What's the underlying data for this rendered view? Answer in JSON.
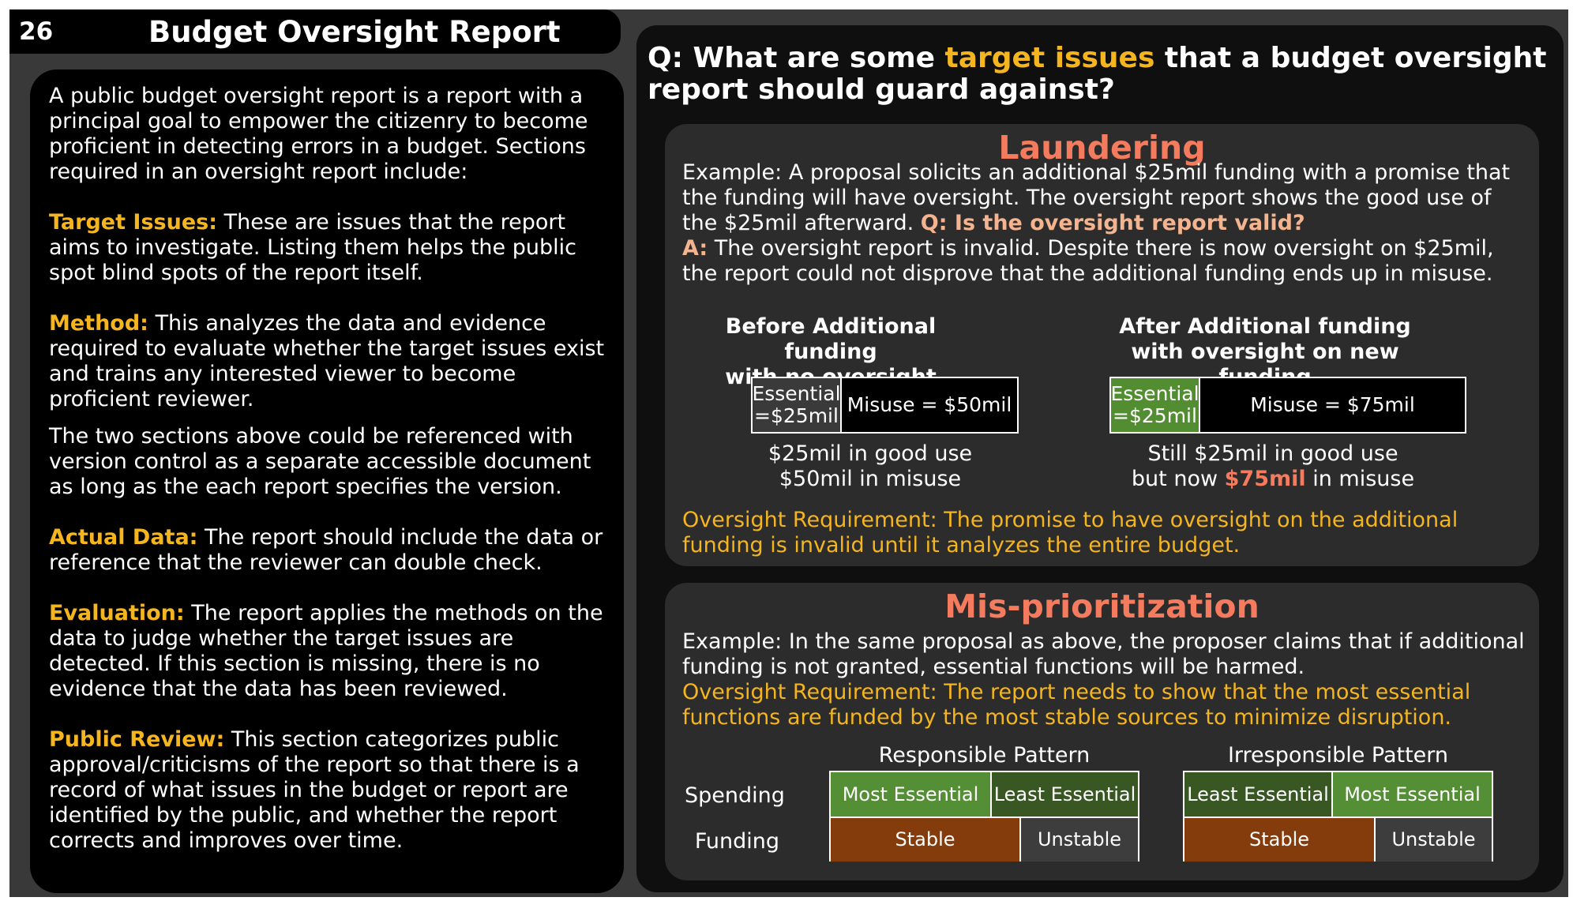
{
  "header": {
    "number": "26",
    "title": "Budget Oversight Report"
  },
  "left": {
    "intro": "A public budget oversight report is a report with a principal goal to empower the citizenry to become proficient in detecting errors in a budget. Sections required in an oversight report include:",
    "sections": [
      {
        "label": "Target Issues:",
        "text": " These are issues that the report aims to investigate. Listing them helps the public spot blind spots of the report itself."
      },
      {
        "label": "Method:",
        "text": " This analyzes the data and evidence required to evaluate whether the target issues exist and trains any interested viewer to become proficient reviewer."
      },
      {
        "label": "",
        "text": "The two sections above could be referenced with version control as a separate accessible document as long as the each report specifies the version."
      },
      {
        "label": "Actual Data:",
        "text": " The report should include the data or reference that the reviewer can double check."
      },
      {
        "label": "Evaluation:",
        "text": " The report applies the methods on the data to judge whether the target issues are detected. If this section is missing, there is no evidence that the data has been reviewed."
      },
      {
        "label": "Public Review:",
        "text": " This section categorizes public approval/criticisms of the report so that there is a record of what issues in the budget or report are identified by the public, and whether the report corrects and improves over time."
      }
    ]
  },
  "question": {
    "prefix": "Q: What are some ",
    "highlight": "target issues",
    "suffix": " that a budget oversight report should guard against?"
  },
  "laundering": {
    "title": "Laundering",
    "example": "Example: A proposal solicits an additional $25mil funding with a promise that the funding will have oversight. The oversight report shows the good use of the $25mil afterward. ",
    "q": "Q: Is the oversight report valid?",
    "a_label": "A:",
    "a_text": " The oversight report is invalid. Despite there is now oversight on $25mil, the report could not disprove that the additional funding ends up in misuse.",
    "before": {
      "heading1": "Before Additional funding",
      "heading2": "with no oversight",
      "essential": "Essential =$25mil",
      "misuse": "Misuse = $50mil",
      "cap1": "$25mil in good use",
      "cap2": "$50mil in misuse"
    },
    "after": {
      "heading1": "After Additional funding",
      "heading2": "with oversight on new funding",
      "essential": "Essential =$25mil",
      "misuse": "Misuse = $75mil",
      "cap1": "Still $25mil in good use",
      "cap2_pre": "but now ",
      "cap2_hl": "$75mil",
      "cap2_post": " in misuse"
    },
    "requirement": "Oversight Requirement: The promise to have oversight on the additional funding is invalid until it analyzes the entire budget."
  },
  "misprioritization": {
    "title": "Mis-prioritization",
    "example": "Example: In the same proposal as above, the proposer claims that if additional funding is not granted, essential functions will be harmed.",
    "requirement": "Oversight Requirement: The report needs to show that the most essential functions are funded by the most stable sources to minimize disruption.",
    "row_spending": "Spending",
    "row_funding": "Funding",
    "responsible": {
      "title": "Responsible Pattern",
      "spend1": "Most Essential",
      "spend2": "Least Essential",
      "fund1": "Stable",
      "fund2": "Unstable"
    },
    "irresponsible": {
      "title": "Irresponsible Pattern",
      "spend1": "Least Essential",
      "spend2": "Most Essential",
      "fund1": "Stable",
      "fund2": "Unstable"
    }
  }
}
